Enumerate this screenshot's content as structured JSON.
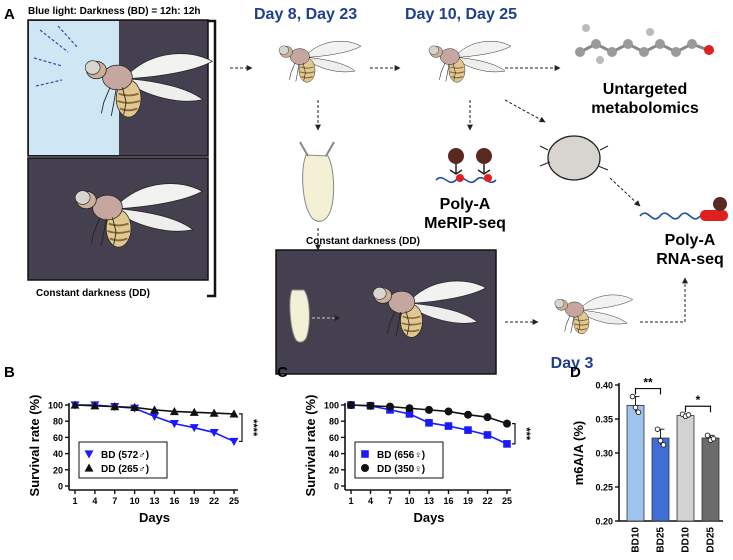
{
  "panel_a": {
    "letter": "A",
    "bd_label": "Blue light: Darkness (BD) = 12h: 12h",
    "dd_label": "Constant darkness (DD)",
    "day_8_23": "Day 8,  Day 23",
    "day_10_25": "Day 10,  Day 25",
    "day_3": "Day 3",
    "metabolomics_line1": "Untargeted",
    "metabolomics_line2": "metabolomics",
    "merip_line1": "Poly-A",
    "merip_line2": "MeRIP-seq",
    "rnaseq_line1": "Poly-A",
    "rnaseq_line2": "RNA-seq",
    "constant_dark_label": "Constant darkness (DD)",
    "colors": {
      "blue_bg": "#cfe6f5",
      "dark_bg": "#444050",
      "title_blue": "#1f3f8f"
    }
  },
  "chart_data": [
    {
      "panel": "B",
      "type": "line",
      "ylabel": "Survival rate (%)",
      "xlabel": "Days",
      "x": [
        1,
        4,
        7,
        10,
        13,
        16,
        19,
        22,
        25
      ],
      "x_ticks": [
        "1",
        "4",
        "7",
        "10",
        "13",
        "16",
        "19",
        "22",
        "25"
      ],
      "ylim": [
        0,
        100
      ],
      "y_ticks": [
        "0",
        "20",
        "40",
        "60",
        "80",
        "100"
      ],
      "series": [
        {
          "name": "BD (572♂)",
          "color": "#1a1aff",
          "marker": "triangle-down",
          "values": [
            100,
            100,
            98,
            96,
            86,
            77,
            72,
            66,
            55
          ]
        },
        {
          "name": "DD (265♂)",
          "color": "#111111",
          "marker": "triangle-up",
          "values": [
            100,
            99,
            98,
            97,
            94,
            92,
            91,
            90,
            89
          ]
        }
      ],
      "significance": "****",
      "legend": "bottom-left"
    },
    {
      "panel": "C",
      "type": "line",
      "ylabel": "Survival rate (%)",
      "xlabel": "Days",
      "x": [
        1,
        4,
        7,
        10,
        13,
        16,
        19,
        22,
        25
      ],
      "x_ticks": [
        "1",
        "4",
        "7",
        "10",
        "13",
        "16",
        "19",
        "22",
        "25"
      ],
      "ylim": [
        0,
        100
      ],
      "y_ticks": [
        "0",
        "20",
        "40",
        "60",
        "80",
        "100"
      ],
      "series": [
        {
          "name": "BD (656♀)",
          "color": "#1a1aff",
          "marker": "square",
          "values": [
            100,
            99,
            94,
            89,
            78,
            74,
            69,
            63,
            52
          ]
        },
        {
          "name": "DD (350♀)",
          "color": "#111111",
          "marker": "circle",
          "values": [
            100,
            99,
            98,
            96,
            94,
            92,
            88,
            85,
            77
          ]
        }
      ],
      "significance": "***",
      "legend": "bottom-left"
    },
    {
      "panel": "D",
      "type": "bar",
      "ylabel": "m6A/A (%)",
      "categories": [
        "BD10",
        "BD25",
        "DD10",
        "DD25"
      ],
      "values": [
        0.37,
        0.322,
        0.355,
        0.322
      ],
      "points": [
        [
          0.383,
          0.367,
          0.36
        ],
        [
          0.335,
          0.318,
          0.312
        ],
        [
          0.357,
          0.354,
          0.356
        ],
        [
          0.326,
          0.319,
          0.321
        ]
      ],
      "colors": [
        "#9ec4ee",
        "#3f6fd6",
        "#d2d2d2",
        "#6b6b6b"
      ],
      "ylim": [
        0.2,
        0.4
      ],
      "y_ticks": [
        "0.20",
        "0.25",
        "0.30",
        "0.35",
        "0.40"
      ],
      "significance": [
        {
          "pair": [
            "BD10",
            "BD25"
          ],
          "label": "**"
        },
        {
          "pair": [
            "DD10",
            "DD25"
          ],
          "label": "*"
        }
      ]
    }
  ]
}
